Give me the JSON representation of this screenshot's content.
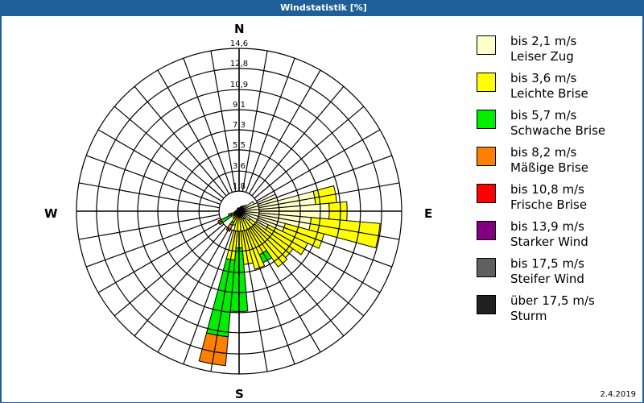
{
  "window": {
    "title": "Windstatistik [%]",
    "date": "2.4.2019"
  },
  "compass": {
    "north": "N",
    "east": "E",
    "south": "S",
    "west": "W"
  },
  "legend": [
    {
      "range": "bis 2,1 m/s",
      "name": "Leiser Zug",
      "color": "#ffffcc"
    },
    {
      "range": "bis 3,6 m/s",
      "name": "Leichte Brise",
      "color": "#ffff00"
    },
    {
      "range": "bis 5,7 m/s",
      "name": "Schwache Brise",
      "color": "#00ee00"
    },
    {
      "range": "bis 8,2 m/s",
      "name": "Mäßige Brise",
      "color": "#ff8000"
    },
    {
      "range": "bis 10,8 m/s",
      "name": "Frische Brise",
      "color": "#ff0000"
    },
    {
      "range": "bis 13,9 m/s",
      "name": "Starker Wind",
      "color": "#800080"
    },
    {
      "range": "bis 17,5 m/s",
      "name": "Steifer Wind",
      "color": "#606060"
    },
    {
      "range": "über 17,5 m/s",
      "name": "Sturm",
      "color": "#202020"
    }
  ],
  "chart_data": {
    "type": "radar-windrose",
    "title": "Windstatistik [%]",
    "unit": "%",
    "rings": [
      "1,8",
      "3,6",
      "5,5",
      "7,3",
      "9,1",
      "10,9",
      "12,8",
      "14,6"
    ],
    "ring_values": [
      1.8,
      3.6,
      5.5,
      7.3,
      9.1,
      10.9,
      12.8,
      14.6
    ],
    "rmax": 14.6,
    "sector_width_deg": 10,
    "directions_deg": [
      0,
      10,
      20,
      30,
      40,
      50,
      60,
      70,
      80,
      90,
      100,
      110,
      120,
      130,
      140,
      150,
      160,
      170,
      180,
      190,
      200,
      210,
      220,
      230,
      240,
      250,
      260,
      270,
      280,
      290,
      300,
      310,
      320,
      330,
      340,
      350
    ],
    "series": [
      {
        "name": "bis 2,1 m/s",
        "values": [
          0.3,
          0.3,
          0.4,
          0.5,
          0.6,
          0.8,
          1.5,
          3.6,
          6.9,
          8.1,
          6.5,
          4.3,
          2.9,
          1.2,
          0.8,
          0.8,
          0.6,
          0.6,
          0.5,
          0.5,
          0.4,
          0.3,
          0.3,
          0.4,
          0.6,
          0.7,
          0.4,
          0.3,
          0.3,
          0.2,
          0.2,
          0.2,
          0.2,
          0.3,
          0.2,
          0.3
        ]
      },
      {
        "name": "bis 3,6 m/s",
        "values": [
          0,
          0,
          0,
          0,
          0,
          0,
          0,
          0,
          1.9,
          1.6,
          6.2,
          3.6,
          3.9,
          4.7,
          5.3,
          3.5,
          4.8,
          4.2,
          2.8,
          3.9,
          0.9,
          0.8,
          0.5,
          0.2,
          0.2,
          0,
          0,
          0,
          0,
          0,
          0,
          0,
          0,
          0,
          0,
          0
        ]
      },
      {
        "name": "bis 5,7 m/s",
        "values": [
          0,
          0,
          0,
          0,
          0,
          0,
          0,
          0,
          0,
          0,
          0,
          0,
          0,
          0,
          0,
          0.8,
          0,
          0,
          5.7,
          6.9,
          0,
          0.3,
          0,
          0,
          1.0,
          0.3,
          0,
          0,
          0,
          0,
          0,
          0,
          0,
          0,
          0,
          0
        ]
      },
      {
        "name": "bis 8,2 m/s",
        "values": [
          0,
          0,
          0,
          0,
          0,
          0,
          0,
          0,
          0,
          0,
          0,
          0,
          0,
          0,
          0,
          0,
          0,
          0,
          0,
          2.6,
          0,
          0.6,
          0,
          0,
          0.3,
          0,
          0,
          0,
          0,
          0,
          0,
          0,
          0,
          0,
          0,
          0
        ]
      },
      {
        "name": "bis 10,8 m/s",
        "values": [
          0,
          0,
          0,
          0,
          0,
          0,
          0,
          0,
          0,
          0,
          0,
          0,
          0,
          0,
          0,
          0,
          0,
          0,
          0,
          0,
          0,
          0,
          0,
          0,
          0,
          0,
          0,
          0,
          0,
          0,
          0,
          0,
          0,
          0,
          0,
          0
        ]
      },
      {
        "name": "bis 13,9 m/s",
        "values": [
          0,
          0,
          0,
          0,
          0,
          0,
          0,
          0,
          0,
          0,
          0,
          0,
          0,
          0,
          0,
          0,
          0,
          0,
          0,
          0,
          0,
          0,
          0,
          0,
          0,
          0,
          0,
          0,
          0,
          0,
          0,
          0,
          0,
          0,
          0,
          0
        ]
      },
      {
        "name": "bis 17,5 m/s",
        "values": [
          0,
          0,
          0,
          0,
          0,
          0,
          0,
          0,
          0,
          0,
          0,
          0,
          0,
          0,
          0,
          0,
          0,
          0,
          0,
          0,
          0,
          0,
          0,
          0,
          0,
          0,
          0,
          0,
          0,
          0,
          0,
          0,
          0,
          0,
          0,
          0
        ]
      },
      {
        "name": "über 17,5 m/s",
        "values": [
          0,
          0,
          0,
          0,
          0,
          0,
          0,
          0,
          0,
          0,
          0,
          0,
          0,
          0,
          0,
          0,
          0,
          0,
          0,
          0,
          0,
          0,
          0,
          0,
          0,
          0,
          0,
          0,
          0,
          0,
          0,
          0,
          0,
          0,
          0,
          0
        ]
      }
    ],
    "legend_position": "right",
    "grid": true
  }
}
